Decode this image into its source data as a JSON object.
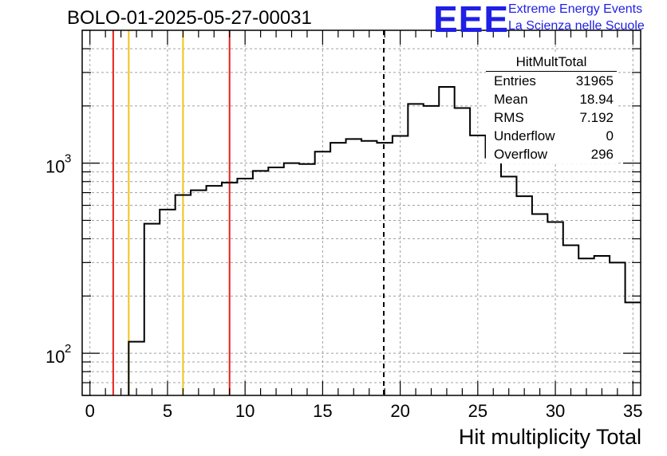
{
  "title": "BOLO-01-2025-05-27-00031",
  "logo": {
    "text": "EEE",
    "line1": "Extreme Energy Events",
    "line2": "La Scienza nelle Scuole",
    "color": "#1f1fe6"
  },
  "stats": {
    "name": "HitMultTotal",
    "rows": [
      {
        "key": "Entries",
        "value": "31965"
      },
      {
        "key": "Mean",
        "value": "18.94"
      },
      {
        "key": "RMS",
        "value": "7.192"
      },
      {
        "key": "Underflow",
        "value": "0"
      },
      {
        "key": "Overflow",
        "value": "296"
      }
    ]
  },
  "chart_data": {
    "type": "histogram",
    "title": "BOLO-01-2025-05-27-00031",
    "xlabel": "Hit multiplicity Total",
    "ylabel": "",
    "y_scale": "log",
    "xlim": [
      -0.5,
      35.5
    ],
    "ylim": [
      60,
      5000
    ],
    "grid": true,
    "x_ticks": [
      0,
      5,
      10,
      15,
      20,
      25,
      30,
      35
    ],
    "y_tick_labels": [
      {
        "value": 100,
        "label": "10",
        "exp": "2"
      },
      {
        "value": 1000,
        "label": "10",
        "exp": "3"
      }
    ],
    "bin_edges": [
      -0.5,
      0.5,
      1.5,
      2.5,
      3.5,
      4.5,
      5.5,
      6.5,
      7.5,
      8.5,
      9.5,
      10.5,
      11.5,
      12.5,
      13.5,
      14.5,
      15.5,
      16.5,
      17.5,
      18.5,
      19.5,
      20.5,
      21.5,
      22.5,
      23.5,
      24.5,
      25.5,
      26.5,
      27.5,
      28.5,
      29.5,
      30.5,
      31.5,
      32.5,
      33.5,
      34.5,
      35.5
    ],
    "counts": [
      0,
      0,
      0,
      115,
      480,
      570,
      680,
      720,
      760,
      790,
      830,
      910,
      950,
      1000,
      990,
      1150,
      1280,
      1340,
      1310,
      1280,
      1390,
      2050,
      2000,
      2520,
      1950,
      1400,
      1070,
      850,
      670,
      540,
      490,
      370,
      315,
      325,
      300,
      185
    ],
    "vertical_lines": [
      {
        "x": 1.5,
        "color": "#e8211c",
        "style": "solid"
      },
      {
        "x": 2.5,
        "color": "#f0c419",
        "style": "solid"
      },
      {
        "x": 6.0,
        "color": "#f0c419",
        "style": "solid"
      },
      {
        "x": 9.0,
        "color": "#e8211c",
        "style": "solid"
      },
      {
        "x": 18.94,
        "color": "#000000",
        "style": "dashed"
      }
    ],
    "line_color": "#000000",
    "grid_color": "#a0a0a0"
  }
}
